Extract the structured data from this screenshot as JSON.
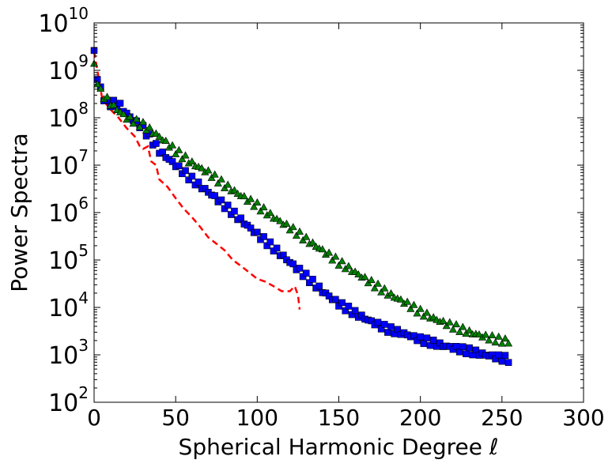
{
  "chart_data": {
    "type": "line",
    "title": "",
    "xlabel": "Spherical Harmonic Degree ℓ",
    "ylabel": "Power Spectra",
    "xlim": [
      0,
      300
    ],
    "ylim": [
      100,
      10000000000
    ],
    "yscale": "log",
    "x_ticks": [
      0,
      50,
      100,
      150,
      200,
      250,
      300
    ],
    "x_tick_labels": [
      "0",
      "50",
      "100",
      "150",
      "200",
      "250",
      "300"
    ],
    "y_ticks": [
      {
        "value": 100,
        "base": "10",
        "exp": "2"
      },
      {
        "value": 1000,
        "base": "10",
        "exp": "3"
      },
      {
        "value": 10000,
        "base": "10",
        "exp": "4"
      },
      {
        "value": 100000,
        "base": "10",
        "exp": "5"
      },
      {
        "value": 1000000,
        "base": "10",
        "exp": "6"
      },
      {
        "value": 10000000,
        "base": "10",
        "exp": "7"
      },
      {
        "value": 100000000,
        "base": "10",
        "exp": "8"
      },
      {
        "value": 1000000000,
        "base": "10",
        "exp": "9"
      },
      {
        "value": 10000000000,
        "base": "10",
        "exp": "10"
      }
    ],
    "grid": false,
    "series": [
      {
        "name": "red-dashed",
        "style": "dashed-line",
        "color": "#ff0000",
        "x": [
          0,
          2,
          5,
          10,
          15,
          20,
          25,
          28,
          30,
          33,
          35,
          38,
          40,
          45,
          50,
          55,
          60,
          65,
          70,
          75,
          80,
          85,
          90,
          95,
          100,
          105,
          110,
          115,
          120,
          123,
          125,
          126
        ],
        "y": [
          2500000000,
          1000000000,
          250000000,
          150000000,
          100000000,
          60000000,
          40000000,
          25000000,
          22000000,
          25000000,
          12000000,
          10000000,
          5000000,
          3500000,
          2000000,
          1200000,
          800000,
          500000,
          300000,
          220000,
          160000,
          100000,
          75000,
          55000,
          40000,
          35000,
          28000,
          22000,
          22000,
          28000,
          18000,
          9000
        ]
      },
      {
        "name": "blue-squares",
        "style": "square-markers",
        "color": "#0000ff",
        "x_start": 0,
        "x_end": 255,
        "x_step": 2,
        "anchors": [
          [
            0,
            2500000000
          ],
          [
            1,
            1500000000
          ],
          [
            2,
            700000000
          ],
          [
            5,
            300000000
          ],
          [
            8,
            200000000
          ],
          [
            15,
            200000000
          ],
          [
            20,
            120000000
          ],
          [
            30,
            60000000
          ],
          [
            40,
            20000000
          ],
          [
            50,
            10000000
          ],
          [
            60,
            5000000
          ],
          [
            75,
            2000000
          ],
          [
            90,
            700000
          ],
          [
            100,
            350000
          ],
          [
            110,
            180000
          ],
          [
            120,
            90000
          ],
          [
            130,
            45000
          ],
          [
            140,
            22000
          ],
          [
            150,
            12000
          ],
          [
            160,
            7500
          ],
          [
            170,
            5000
          ],
          [
            180,
            3500
          ],
          [
            190,
            2800
          ],
          [
            200,
            2100
          ],
          [
            210,
            1700
          ],
          [
            220,
            1400
          ],
          [
            230,
            1200
          ],
          [
            240,
            1000
          ],
          [
            250,
            850
          ],
          [
            255,
            800
          ]
        ]
      },
      {
        "name": "green-triangles",
        "style": "triangle-markers",
        "color": "#008000",
        "x_start": 0,
        "x_end": 255,
        "x_step": 2,
        "anchors": [
          [
            0,
            1200000000
          ],
          [
            2,
            600000000
          ],
          [
            4,
            350000000
          ],
          [
            10,
            200000000
          ],
          [
            20,
            100000000
          ],
          [
            30,
            70000000
          ],
          [
            40,
            40000000
          ],
          [
            50,
            20000000
          ],
          [
            60,
            11000000
          ],
          [
            70,
            7000000
          ],
          [
            80,
            3800000
          ],
          [
            90,
            2300000
          ],
          [
            100,
            1400000
          ],
          [
            110,
            800000
          ],
          [
            120,
            480000
          ],
          [
            130,
            270000
          ],
          [
            140,
            160000
          ],
          [
            150,
            90000
          ],
          [
            160,
            55000
          ],
          [
            170,
            33000
          ],
          [
            180,
            20000
          ],
          [
            190,
            13000
          ],
          [
            200,
            8000
          ],
          [
            210,
            5500
          ],
          [
            220,
            4000
          ],
          [
            230,
            3000
          ],
          [
            240,
            2400
          ],
          [
            250,
            2000
          ],
          [
            255,
            1900
          ]
        ]
      }
    ]
  }
}
